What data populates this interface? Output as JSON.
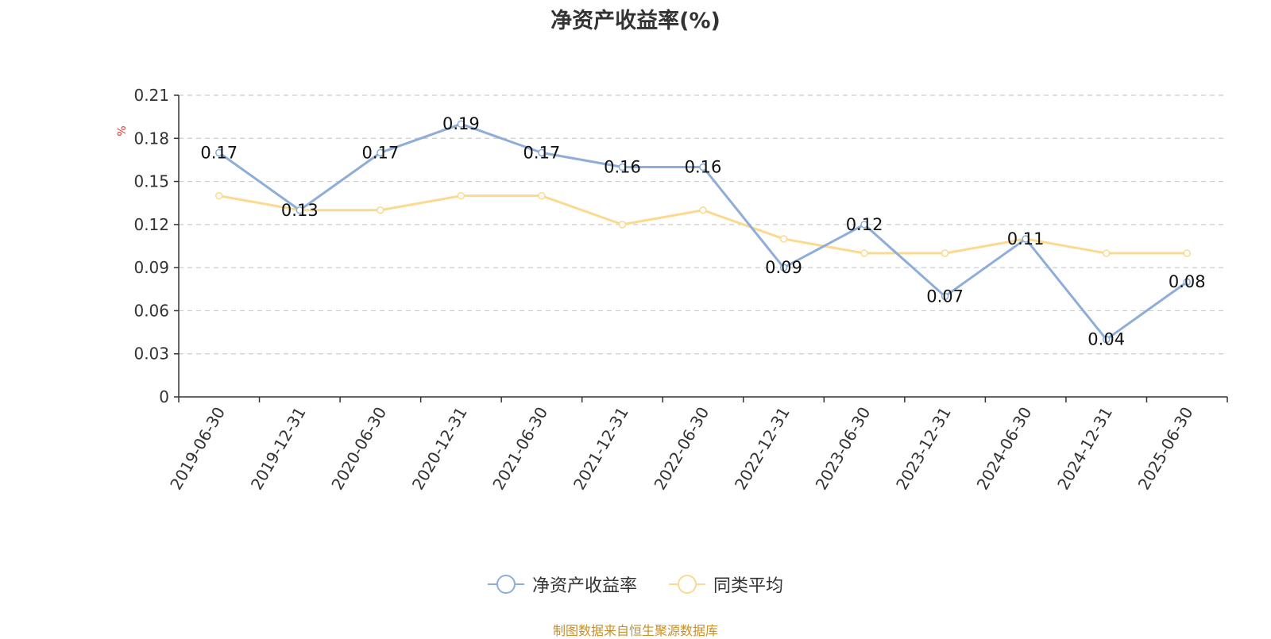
{
  "chart_data": {
    "type": "line",
    "title": "净资产收益率(%)",
    "ylabel": "%",
    "ylim": [
      0,
      0.21
    ],
    "yticks": [
      "0",
      "0.03",
      "0.06",
      "0.09",
      "0.12",
      "0.15",
      "0.18",
      "0.21"
    ],
    "x": [
      "2019-06-30",
      "2019-12-31",
      "2020-06-30",
      "2020-12-31",
      "2021-06-30",
      "2021-12-31",
      "2022-06-30",
      "2022-12-31",
      "2023-06-30",
      "2023-12-31",
      "2024-06-30",
      "2024-12-31",
      "2025-06-30"
    ],
    "series": [
      {
        "name": "净资产收益率",
        "color": "#8eadd8",
        "values": [
          0.17,
          0.13,
          0.17,
          0.19,
          0.17,
          0.16,
          0.16,
          0.09,
          0.12,
          0.07,
          0.11,
          0.04,
          0.08
        ],
        "labels": [
          "0.17",
          "0.13",
          "0.17",
          "0.19",
          "0.17",
          "0.16",
          "0.16",
          "0.09",
          "0.12",
          "0.07",
          "0.11",
          "0.04",
          "0.08"
        ]
      },
      {
        "name": "同类平均",
        "color": "#fbd98f",
        "values": [
          0.14,
          0.13,
          0.13,
          0.14,
          0.14,
          0.12,
          0.13,
          0.11,
          0.1,
          0.1,
          0.11,
          0.1,
          0.1
        ]
      }
    ],
    "grid": true,
    "legend_position": "bottom-center"
  },
  "source_note": "制图数据来自恒生聚源数据库"
}
